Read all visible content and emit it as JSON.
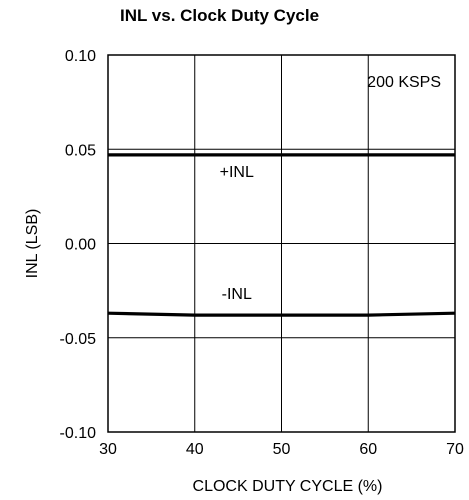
{
  "chart_data": {
    "type": "line",
    "title": "INL vs. Clock Duty Cycle",
    "xlabel": "CLOCK DUTY CYCLE (%)",
    "ylabel": "INL (LSB)",
    "xlim": [
      30,
      70
    ],
    "ylim": [
      -0.1,
      0.1
    ],
    "x_ticks": [
      30,
      40,
      50,
      60,
      70
    ],
    "x_tick_labels": [
      "30",
      "40",
      "50",
      "60",
      "70"
    ],
    "y_ticks": [
      0.1,
      0.05,
      0.0,
      -0.05,
      -0.1
    ],
    "y_tick_labels": [
      "0.10",
      "0.05",
      "0.00",
      "-0.05",
      "-0.10"
    ],
    "grid": true,
    "annotation": "200 KSPS",
    "series": [
      {
        "name": "+INL",
        "x": [
          30,
          40,
          50,
          60,
          70
        ],
        "y": [
          0.047,
          0.047,
          0.047,
          0.047,
          0.047
        ]
      },
      {
        "name": "-INL",
        "x": [
          30,
          40,
          50,
          60,
          70
        ],
        "y": [
          -0.037,
          -0.038,
          -0.038,
          -0.038,
          -0.037
        ]
      }
    ]
  }
}
